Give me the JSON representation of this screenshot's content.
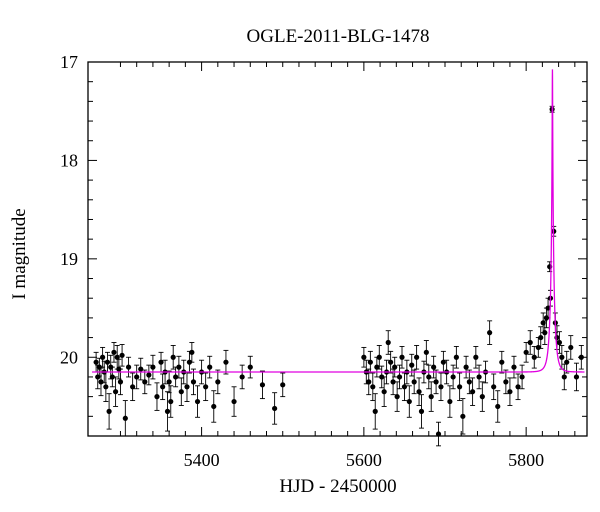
{
  "chart_data": {
    "type": "scatter",
    "title": "OGLE-2011-BLG-1478",
    "xlabel": "HJD - 2450000",
    "ylabel": "I magnitude",
    "xlim": [
      5260,
      5875
    ],
    "ylim": [
      20.8,
      17.0
    ],
    "y_inverted": true,
    "x_ticks": [
      5400,
      5600,
      5800
    ],
    "y_ticks": [
      17,
      18,
      19,
      20
    ],
    "grid": false,
    "legend": "none",
    "colors": {
      "points": "#000000",
      "model": "#e000e0",
      "axes": "#000000"
    },
    "series": [
      {
        "type": "scatter_with_errorbars",
        "points": [
          [
            5270,
            20.05,
            0.1
          ],
          [
            5272,
            20.2,
            0.12
          ],
          [
            5274,
            20.1,
            0.09
          ],
          [
            5276,
            20.25,
            0.14
          ],
          [
            5278,
            20.0,
            0.1
          ],
          [
            5280,
            20.15,
            0.11
          ],
          [
            5282,
            20.3,
            0.15
          ],
          [
            5284,
            20.05,
            0.1
          ],
          [
            5286,
            20.55,
            0.18
          ],
          [
            5288,
            20.1,
            0.12
          ],
          [
            5290,
            20.2,
            0.1
          ],
          [
            5292,
            19.95,
            0.1
          ],
          [
            5294,
            20.35,
            0.15
          ],
          [
            5296,
            20.0,
            0.12
          ],
          [
            5298,
            20.12,
            0.1
          ],
          [
            5300,
            20.25,
            0.13
          ],
          [
            5302,
            19.98,
            0.11
          ],
          [
            5306,
            20.62,
            0.18
          ],
          [
            5310,
            20.1,
            0.1
          ],
          [
            5315,
            20.3,
            0.14
          ],
          [
            5320,
            20.2,
            0.12
          ],
          [
            5325,
            20.12,
            0.11
          ],
          [
            5330,
            20.25,
            0.12
          ],
          [
            5335,
            20.18,
            0.1
          ],
          [
            5340,
            20.1,
            0.12
          ],
          [
            5345,
            20.4,
            0.14
          ],
          [
            5350,
            20.05,
            0.1
          ],
          [
            5352,
            20.3,
            0.13
          ],
          [
            5355,
            20.15,
            0.12
          ],
          [
            5358,
            20.55,
            0.2
          ],
          [
            5360,
            20.25,
            0.11
          ],
          [
            5362,
            20.45,
            0.16
          ],
          [
            5365,
            20.0,
            0.12
          ],
          [
            5368,
            20.2,
            0.1
          ],
          [
            5372,
            20.1,
            0.11
          ],
          [
            5375,
            20.35,
            0.14
          ],
          [
            5378,
            20.15,
            0.12
          ],
          [
            5382,
            20.3,
            0.15
          ],
          [
            5385,
            20.05,
            0.11
          ],
          [
            5388,
            19.95,
            0.1
          ],
          [
            5390,
            20.25,
            0.13
          ],
          [
            5395,
            20.45,
            0.16
          ],
          [
            5400,
            20.15,
            0.12
          ],
          [
            5405,
            20.3,
            0.14
          ],
          [
            5410,
            20.1,
            0.11
          ],
          [
            5415,
            20.5,
            0.16
          ],
          [
            5420,
            20.25,
            0.12
          ],
          [
            5430,
            20.05,
            0.12
          ],
          [
            5440,
            20.45,
            0.15
          ],
          [
            5450,
            20.2,
            0.12
          ],
          [
            5460,
            20.1,
            0.11
          ],
          [
            5475,
            20.28,
            0.14
          ],
          [
            5490,
            20.52,
            0.16
          ],
          [
            5500,
            20.28,
            0.12
          ],
          [
            5600,
            20.0,
            0.1
          ],
          [
            5603,
            20.15,
            0.12
          ],
          [
            5606,
            20.25,
            0.13
          ],
          [
            5608,
            20.05,
            0.11
          ],
          [
            5611,
            20.3,
            0.14
          ],
          [
            5614,
            20.55,
            0.18
          ],
          [
            5616,
            20.1,
            0.1
          ],
          [
            5619,
            20.0,
            0.12
          ],
          [
            5622,
            20.2,
            0.11
          ],
          [
            5625,
            20.35,
            0.15
          ],
          [
            5628,
            20.15,
            0.12
          ],
          [
            5630,
            19.85,
            0.12
          ],
          [
            5633,
            20.05,
            0.11
          ],
          [
            5636,
            20.25,
            0.13
          ],
          [
            5638,
            20.1,
            0.1
          ],
          [
            5641,
            20.4,
            0.15
          ],
          [
            5644,
            20.2,
            0.12
          ],
          [
            5647,
            20.0,
            0.11
          ],
          [
            5650,
            20.3,
            0.14
          ],
          [
            5653,
            20.15,
            0.12
          ],
          [
            5656,
            20.45,
            0.16
          ],
          [
            5659,
            20.08,
            0.11
          ],
          [
            5662,
            20.25,
            0.12
          ],
          [
            5665,
            20.0,
            0.12
          ],
          [
            5668,
            20.35,
            0.14
          ],
          [
            5671,
            20.55,
            0.17
          ],
          [
            5674,
            20.15,
            0.11
          ],
          [
            5677,
            19.95,
            0.12
          ],
          [
            5680,
            20.2,
            0.12
          ],
          [
            5683,
            20.4,
            0.15
          ],
          [
            5686,
            20.1,
            0.11
          ],
          [
            5689,
            20.25,
            0.12
          ],
          [
            5692,
            20.78,
            0.12
          ],
          [
            5695,
            20.3,
            0.14
          ],
          [
            5698,
            20.05,
            0.11
          ],
          [
            5702,
            20.15,
            0.12
          ],
          [
            5706,
            20.45,
            0.16
          ],
          [
            5710,
            20.2,
            0.12
          ],
          [
            5714,
            20.0,
            0.11
          ],
          [
            5718,
            20.3,
            0.14
          ],
          [
            5722,
            20.6,
            0.18
          ],
          [
            5726,
            20.1,
            0.11
          ],
          [
            5730,
            20.25,
            0.12
          ],
          [
            5734,
            20.35,
            0.14
          ],
          [
            5738,
            20.0,
            0.11
          ],
          [
            5742,
            20.2,
            0.12
          ],
          [
            5746,
            20.4,
            0.15
          ],
          [
            5750,
            20.15,
            0.11
          ],
          [
            5755,
            19.75,
            0.12
          ],
          [
            5760,
            20.3,
            0.13
          ],
          [
            5765,
            20.5,
            0.16
          ],
          [
            5770,
            20.05,
            0.11
          ],
          [
            5775,
            20.25,
            0.12
          ],
          [
            5780,
            20.35,
            0.14
          ],
          [
            5785,
            20.1,
            0.11
          ],
          [
            5790,
            20.3,
            0.13
          ],
          [
            5795,
            20.2,
            0.12
          ],
          [
            5800,
            19.95,
            0.1
          ],
          [
            5805,
            19.85,
            0.12
          ],
          [
            5810,
            20.0,
            0.11
          ],
          [
            5815,
            19.9,
            0.1
          ],
          [
            5818,
            19.8,
            0.11
          ],
          [
            5821,
            19.65,
            0.1
          ],
          [
            5823,
            19.75,
            0.12
          ],
          [
            5825,
            19.6,
            0.1
          ],
          [
            5827,
            19.5,
            0.1
          ],
          [
            5829,
            19.08,
            0.05
          ],
          [
            5830,
            19.4,
            0.08
          ],
          [
            5832,
            17.48,
            0.03
          ],
          [
            5834,
            18.72,
            0.05
          ],
          [
            5836,
            19.65,
            0.1
          ],
          [
            5838,
            19.8,
            0.12
          ],
          [
            5841,
            19.85,
            0.11
          ],
          [
            5844,
            20.0,
            0.12
          ],
          [
            5847,
            20.2,
            0.13
          ],
          [
            5850,
            20.05,
            0.11
          ],
          [
            5855,
            19.9,
            0.12
          ],
          [
            5862,
            20.2,
            0.14
          ],
          [
            5868,
            20.0,
            0.12
          ]
        ]
      },
      {
        "type": "line",
        "model": "point-lens microlensing fit",
        "baseline_mag": 20.15,
        "t0": 5832.4,
        "tE": 5.0,
        "u0": 0.05,
        "blend_fraction": 0.16,
        "x_range": [
          5265,
          5872
        ]
      }
    ]
  }
}
